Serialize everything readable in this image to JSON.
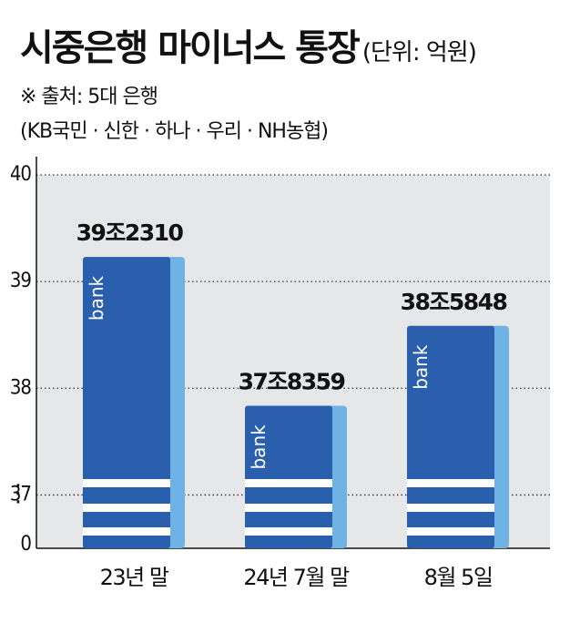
{
  "header": {
    "title": "시중은행 마이너스 통장",
    "unit": "(단위: 억원)",
    "source": "※ 출처: 5대 은행",
    "banks": "(KB국민 · 신한 · 하나 · 우리 · NH농협)"
  },
  "colors": {
    "plot_bg": "#e6e7e9",
    "bar_main": "#2a5fae",
    "bar_side": "#6fb3e4",
    "stripe": "#ffffff",
    "text": "#111111"
  },
  "chart_data": {
    "type": "bar",
    "categories": [
      "23년 말",
      "24년 7월 말",
      "8월 5일"
    ],
    "values": [
      392310,
      378359,
      385848
    ],
    "value_labels": [
      "39조2310",
      "37조8359",
      "38조5848"
    ],
    "bar_text": "bank",
    "unit": "억원",
    "y_axis": {
      "broken": true,
      "break_symbol": "⋮",
      "ticks": [
        {
          "label": "0",
          "value": 0
        },
        {
          "label": "37",
          "value": 370000
        },
        {
          "label": "38",
          "value": 380000
        },
        {
          "label": "39",
          "value": 390000
        },
        {
          "label": "40",
          "value": 400000
        }
      ],
      "ylim": [
        365000,
        400000
      ]
    },
    "grid": "dotted horizontal at 37, 38, 39, 40",
    "legend": "none"
  }
}
